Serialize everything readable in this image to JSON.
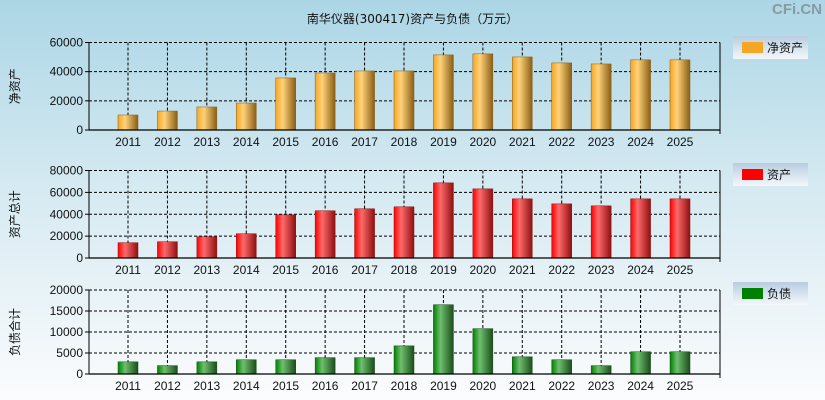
{
  "title": "南华仪器(300417)资产与负债（万元）",
  "brand": "CFi.CN",
  "chart_data": [
    {
      "type": "bar",
      "ylabel": "净资产",
      "legend": "净资产",
      "color": "#f5a623",
      "dark": "#8a5e14",
      "light": "#ffd27a",
      "categories": [
        "2011",
        "2012",
        "2013",
        "2014",
        "2015",
        "2016",
        "2017",
        "2018",
        "2019",
        "2020",
        "2021",
        "2022",
        "2023",
        "2024",
        "2025"
      ],
      "values": [
        10300,
        13000,
        15800,
        18500,
        35700,
        39100,
        40500,
        40500,
        51500,
        52200,
        50100,
        46000,
        45300,
        48100,
        48100
      ],
      "ylim": [
        0,
        60000
      ],
      "yticks": [
        0,
        20000,
        40000,
        60000
      ],
      "grid": true,
      "legend_position": "right"
    },
    {
      "type": "bar",
      "ylabel": "资产总计",
      "legend": "资产",
      "color": "#ff0000",
      "dark": "#8e1010",
      "light": "#ff6a6a",
      "categories": [
        "2011",
        "2012",
        "2013",
        "2014",
        "2015",
        "2016",
        "2017",
        "2018",
        "2019",
        "2020",
        "2021",
        "2022",
        "2023",
        "2024",
        "2025"
      ],
      "values": [
        14000,
        14900,
        19500,
        22200,
        39500,
        43200,
        45000,
        46800,
        68700,
        63200,
        54100,
        49500,
        47700,
        54100,
        54100
      ],
      "ylim": [
        0,
        80000
      ],
      "yticks": [
        0,
        20000,
        40000,
        60000,
        80000
      ],
      "grid": true,
      "legend_position": "right"
    },
    {
      "type": "bar",
      "ylabel": "负债合计",
      "legend": "负债",
      "color": "#008000",
      "dark": "#1b4d1b",
      "light": "#6fbf6f",
      "categories": [
        "2011",
        "2012",
        "2013",
        "2014",
        "2015",
        "2016",
        "2017",
        "2018",
        "2019",
        "2020",
        "2021",
        "2022",
        "2023",
        "2024",
        "2025"
      ],
      "values": [
        2900,
        2000,
        2900,
        3400,
        3400,
        3900,
        3900,
        6700,
        16500,
        10800,
        4100,
        3400,
        2000,
        5300,
        5300
      ],
      "ylim": [
        0,
        20000
      ],
      "yticks": [
        0,
        5000,
        10000,
        15000,
        20000
      ],
      "grid": true,
      "legend_position": "right"
    }
  ]
}
